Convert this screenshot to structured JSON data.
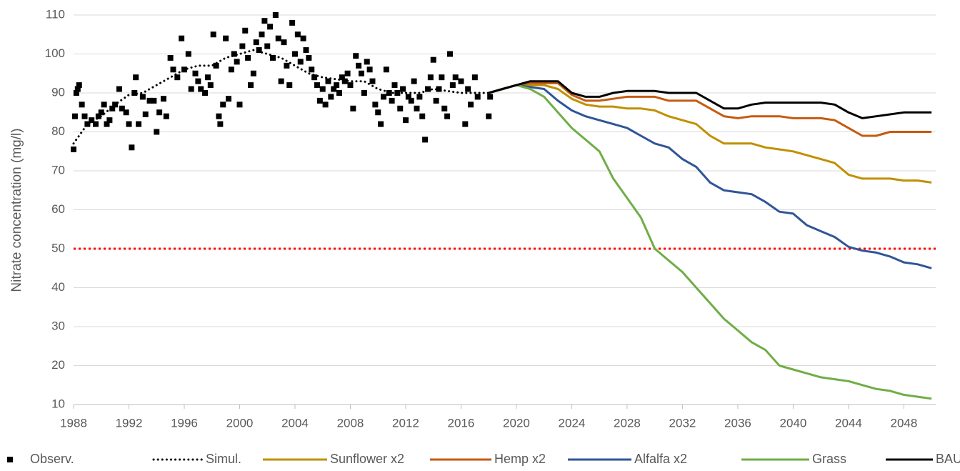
{
  "chart_data": {
    "type": "line",
    "y_label": "Nitrate concentration (mg/l)",
    "xlim": [
      1988,
      2050.3
    ],
    "xticks": [
      1988,
      1992,
      1996,
      2000,
      2004,
      2008,
      2012,
      2016,
      2020,
      2024,
      2028,
      2032,
      2036,
      2040,
      2044,
      2048
    ],
    "ylim": [
      10,
      110
    ],
    "yticks": [
      10,
      20,
      30,
      40,
      50,
      60,
      70,
      80,
      90,
      100,
      110
    ],
    "grid": true,
    "legend": "bottom",
    "reference_line": {
      "value": 50,
      "color": "#ff0000"
    },
    "series": [
      {
        "name": "Observ.",
        "type": "scatter",
        "color": "#000000",
        "x": [
          1988.0,
          1988.1,
          1988.2,
          1988.3,
          1988.4,
          1988.6,
          1988.8,
          1989.0,
          1989.3,
          1989.6,
          1989.8,
          1990.0,
          1990.2,
          1990.4,
          1990.6,
          1990.8,
          1991.0,
          1991.3,
          1991.5,
          1991.8,
          1992.0,
          1992.2,
          1992.4,
          1992.5,
          1992.7,
          1993.0,
          1993.2,
          1993.5,
          1993.8,
          1994.0,
          1994.2,
          1994.5,
          1994.7,
          1995.0,
          1995.2,
          1995.5,
          1995.8,
          1996.0,
          1996.3,
          1996.5,
          1996.8,
          1997.0,
          1997.2,
          1997.5,
          1997.7,
          1997.9,
          1998.1,
          1998.3,
          1998.5,
          1998.6,
          1998.8,
          1999.0,
          1999.2,
          1999.4,
          1999.6,
          1999.8,
          2000.0,
          2000.2,
          2000.4,
          2000.6,
          2000.8,
          2001.0,
          2001.2,
          2001.4,
          2001.6,
          2001.8,
          2002.0,
          2002.2,
          2002.4,
          2002.6,
          2002.8,
          2003.0,
          2003.2,
          2003.4,
          2003.6,
          2003.8,
          2004.0,
          2004.2,
          2004.4,
          2004.6,
          2004.8,
          2005.0,
          2005.2,
          2005.4,
          2005.6,
          2005.8,
          2006.0,
          2006.2,
          2006.4,
          2006.6,
          2006.8,
          2007.0,
          2007.2,
          2007.4,
          2007.6,
          2007.8,
          2008.0,
          2008.2,
          2008.4,
          2008.6,
          2008.8,
          2009.0,
          2009.2,
          2009.4,
          2009.6,
          2009.8,
          2010.0,
          2010.2,
          2010.4,
          2010.6,
          2010.8,
          2011.0,
          2011.2,
          2011.4,
          2011.6,
          2011.8,
          2012.0,
          2012.2,
          2012.4,
          2012.6,
          2012.8,
          2013.0,
          2013.2,
          2013.4,
          2013.6,
          2013.8,
          2014.0,
          2014.2,
          2014.4,
          2014.6,
          2014.8,
          2015.0,
          2015.2,
          2015.4,
          2015.6,
          2016.0,
          2016.3,
          2016.5,
          2016.7,
          2017.0,
          2017.2,
          2018.0,
          2018.1
        ],
        "values": [
          75.5,
          84,
          90,
          91,
          92,
          87,
          84,
          82,
          83,
          82,
          84,
          85,
          87,
          82,
          83,
          86,
          87,
          91,
          86,
          85,
          82,
          76,
          90,
          94,
          82,
          89,
          84.5,
          88,
          88,
          80,
          85,
          88.5,
          84,
          99,
          96,
          94,
          104,
          96,
          100,
          91,
          95,
          93,
          91,
          90,
          94,
          92,
          105,
          97,
          84,
          82,
          87,
          104,
          88.5,
          96,
          100,
          98,
          87,
          102,
          106,
          99,
          92,
          95,
          103,
          101,
          105,
          108.5,
          102,
          107,
          99,
          110,
          104,
          93,
          103,
          97,
          92,
          108,
          100,
          105,
          98,
          104,
          101,
          99,
          96,
          94,
          92,
          88,
          91,
          87,
          93,
          89,
          91,
          92,
          90,
          94,
          93,
          95,
          92,
          86,
          99.5,
          97,
          95,
          90,
          98,
          96,
          93,
          87,
          85,
          82,
          89,
          96,
          90,
          88,
          92,
          90,
          86,
          91,
          83,
          89,
          88,
          93,
          86,
          89,
          84,
          78,
          91,
          94,
          98.5,
          88,
          91,
          94,
          86,
          84,
          100,
          92,
          94,
          93,
          82,
          91,
          87,
          94,
          89,
          84,
          89
        ]
      },
      {
        "name": "Simul.",
        "type": "dotted",
        "color": "#000000",
        "x": [
          1988,
          1989,
          1990,
          1991,
          1992,
          1993,
          1994,
          1995,
          1996,
          1997,
          1998,
          1999,
          2000,
          2001,
          2002,
          2003,
          2004,
          2005,
          2006,
          2007,
          2008,
          2009,
          2010,
          2011,
          2012,
          2013,
          2014,
          2015,
          2016,
          2017,
          2018
        ],
        "values": [
          77,
          82,
          84,
          87,
          89.5,
          90,
          92,
          94,
          96,
          97,
          97,
          99,
          100,
          101,
          100,
          99,
          97,
          95,
          94,
          93.5,
          93,
          93,
          91,
          90,
          90,
          90,
          91,
          90.5,
          90,
          90,
          90
        ]
      },
      {
        "name": "Sunflower x2",
        "type": "line",
        "color": "#c09000",
        "x": [
          2018,
          2019,
          2020,
          2021,
          2022,
          2023,
          2024,
          2025,
          2026,
          2027,
          2028,
          2029,
          2030,
          2031,
          2032,
          2033,
          2034,
          2035,
          2036,
          2037,
          2038,
          2039,
          2040,
          2041,
          2042,
          2043,
          2044,
          2045,
          2046,
          2047,
          2048,
          2049,
          2050
        ],
        "values": [
          90,
          91,
          92,
          92,
          92,
          91,
          88.5,
          87,
          86.5,
          86.5,
          86,
          86,
          85.5,
          84,
          83,
          82,
          79,
          77,
          77,
          77,
          76,
          75.5,
          75,
          74,
          73,
          72,
          69,
          68,
          68,
          68,
          67.5,
          67.5,
          67
        ]
      },
      {
        "name": "Hemp x2",
        "type": "line",
        "color": "#c55a11",
        "x": [
          2018,
          2019,
          2020,
          2021,
          2022,
          2023,
          2024,
          2025,
          2026,
          2027,
          2028,
          2029,
          2030,
          2031,
          2032,
          2033,
          2034,
          2035,
          2036,
          2037,
          2038,
          2039,
          2040,
          2041,
          2042,
          2043,
          2044,
          2045,
          2046,
          2047,
          2048,
          2049,
          2050
        ],
        "values": [
          90,
          91,
          92,
          92.5,
          92.5,
          92.5,
          89.5,
          88,
          88,
          88.5,
          89,
          89,
          89,
          88,
          88,
          88,
          86,
          84,
          83.5,
          84,
          84,
          84,
          83.5,
          83.5,
          83.5,
          83,
          81,
          79,
          79,
          80,
          80,
          80,
          80
        ]
      },
      {
        "name": "Alfalfa x2",
        "type": "line",
        "color": "#2f5597",
        "x": [
          2018,
          2019,
          2020,
          2021,
          2022,
          2023,
          2024,
          2025,
          2026,
          2027,
          2028,
          2029,
          2030,
          2031,
          2032,
          2033,
          2034,
          2035,
          2036,
          2037,
          2038,
          2039,
          2040,
          2041,
          2042,
          2043,
          2044,
          2045,
          2046,
          2047,
          2048,
          2049,
          2050
        ],
        "values": [
          90,
          91,
          92,
          91.5,
          91,
          88,
          85.5,
          84,
          83,
          82,
          81,
          79,
          77,
          76,
          73,
          71,
          67,
          65,
          64.5,
          64,
          62,
          59.5,
          59,
          56,
          54.5,
          53,
          50.5,
          49.5,
          49,
          48,
          46.5,
          46,
          45
        ]
      },
      {
        "name": "Grass",
        "type": "line",
        "color": "#70ad47",
        "x": [
          2018,
          2019,
          2020,
          2021,
          2022,
          2023,
          2024,
          2025,
          2026,
          2027,
          2028,
          2029,
          2030,
          2031,
          2032,
          2033,
          2034,
          2035,
          2036,
          2037,
          2038,
          2039,
          2040,
          2041,
          2042,
          2043,
          2044,
          2045,
          2046,
          2047,
          2048,
          2049,
          2050
        ],
        "values": [
          90,
          91,
          92,
          91,
          89,
          85,
          81,
          78,
          75,
          68,
          63,
          58,
          50,
          47,
          44,
          40,
          36,
          32,
          29,
          26,
          24,
          20,
          19,
          18,
          17,
          16.5,
          16,
          15,
          14,
          13.5,
          12.5,
          12,
          11.5
        ]
      },
      {
        "name": "BAU",
        "type": "line",
        "color": "#000000",
        "x": [
          2018,
          2019,
          2020,
          2021,
          2022,
          2023,
          2024,
          2025,
          2026,
          2027,
          2028,
          2029,
          2030,
          2031,
          2032,
          2033,
          2034,
          2035,
          2036,
          2037,
          2038,
          2039,
          2040,
          2041,
          2042,
          2043,
          2044,
          2045,
          2046,
          2047,
          2048,
          2049,
          2050
        ],
        "values": [
          90,
          91,
          92,
          93,
          93,
          93,
          90,
          89,
          89,
          90,
          90.5,
          90.5,
          90.5,
          90,
          90,
          90,
          88,
          86,
          86,
          87,
          87.5,
          87.5,
          87.5,
          87.5,
          87.5,
          87,
          85,
          83.5,
          84,
          84.5,
          85,
          85,
          85
        ]
      }
    ]
  }
}
